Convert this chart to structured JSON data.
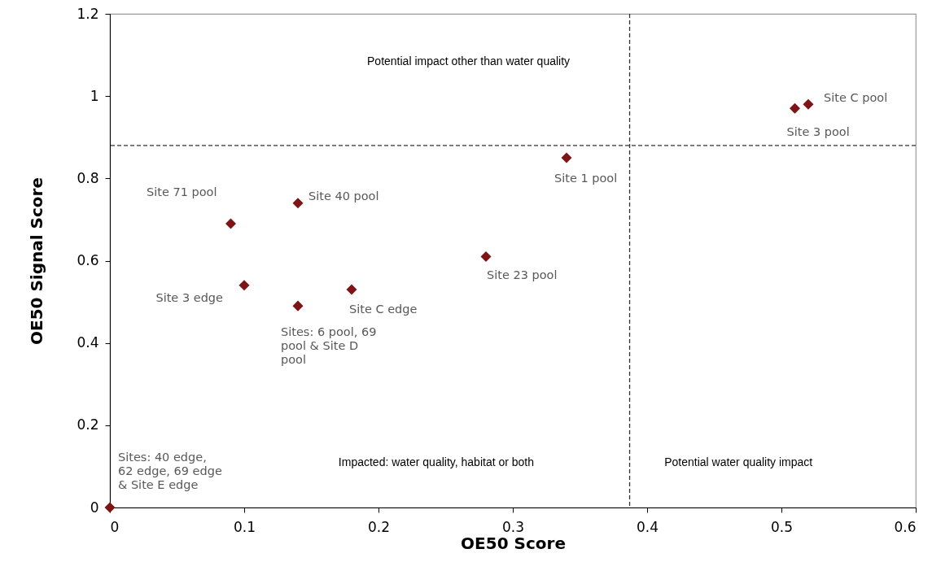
{
  "chart_data": {
    "type": "scatter",
    "xlabel": "OE50 Score",
    "ylabel": "OE50 Signal Score",
    "x": [
      0,
      0.09,
      0.14,
      0.1,
      0.14,
      0.18,
      0.28,
      0.34,
      0.51,
      0.52
    ],
    "series": [
      {
        "color": "#7f1416",
        "values": [
          0,
          0.69,
          0.74,
          0.54,
          0.49,
          0.53,
          0.61,
          0.85,
          0.97,
          0.98
        ]
      }
    ],
    "marker": "diamond",
    "xlim": [
      0,
      0.6
    ],
    "xticks": [
      0,
      0.1,
      0.2,
      0.3,
      0.4,
      0.5,
      0.6
    ],
    "ylim": [
      0,
      1.2
    ],
    "yticks": [
      0,
      0.2,
      0.4,
      0.6,
      0.8,
      1,
      1.2
    ],
    "grid": false,
    "ref_lines": [
      {
        "axis": "x",
        "value": 0.387,
        "line_style": "dashed"
      },
      {
        "axis": "y",
        "value": 0.88,
        "line_style": "dashed"
      }
    ],
    "annotations": [
      "Potential impact other than water quality",
      "Impacted: water quality, habitat or both",
      "Potential water  quality impact",
      {
        "text": "Sites: 40 edge, 62 edge, 69 edge & Site E edge",
        "x": 0,
        "y": 0
      },
      {
        "text": "Site 71 pool",
        "x": 0.09,
        "y": 0.69
      },
      {
        "text": "Site 40 pool",
        "x": 0.14,
        "y": 0.74
      },
      {
        "text": "Site 3 edge",
        "x": 0.1,
        "y": 0.54
      },
      {
        "text": "Sites: 6 pool, 69 pool & Site D pool",
        "x": 0.14,
        "y": 0.49
      },
      {
        "text": "Site C edge",
        "x": 0.18,
        "y": 0.53
      },
      {
        "text": "Site 23 pool",
        "x": 0.28,
        "y": 0.61
      },
      {
        "text": "Site 1 pool",
        "x": 0.34,
        "y": 0.85
      },
      {
        "text": "Site 3 pool",
        "x": 0.51,
        "y": 0.97
      },
      {
        "text": "Site C pool",
        "x": 0.52,
        "y": 0.98
      }
    ]
  }
}
